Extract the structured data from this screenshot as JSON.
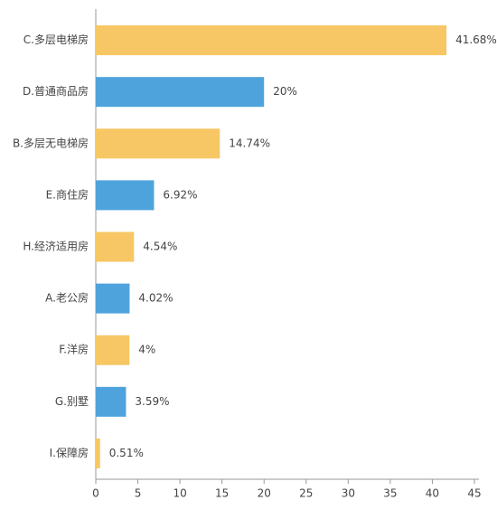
{
  "chart_data": {
    "type": "hbar",
    "categories": [
      "C.多层电梯房",
      "D.普通商品房",
      "B.多层无电梯房",
      "E.商住房",
      "H.经济适用房",
      "A.老公房",
      "F.洋房",
      "G.别墅",
      "I.保障房"
    ],
    "values": [
      41.68,
      20,
      14.74,
      6.92,
      4.54,
      4.02,
      4,
      3.59,
      0.51
    ],
    "value_labels": [
      "41.68%",
      "20%",
      "14.74%",
      "6.92%",
      "4.54%",
      "4.02%",
      "4%",
      "3.59%",
      "0.51%"
    ],
    "colors": [
      "#f7c765",
      "#4fa3dc",
      "#f7c765",
      "#4fa3dc",
      "#f7c765",
      "#4fa3dc",
      "#f7c765",
      "#4fa3dc",
      "#f7c765"
    ],
    "xlim": [
      0,
      45
    ],
    "xticks": [
      0,
      5,
      10,
      15,
      20,
      25,
      30,
      35,
      40,
      45
    ]
  }
}
